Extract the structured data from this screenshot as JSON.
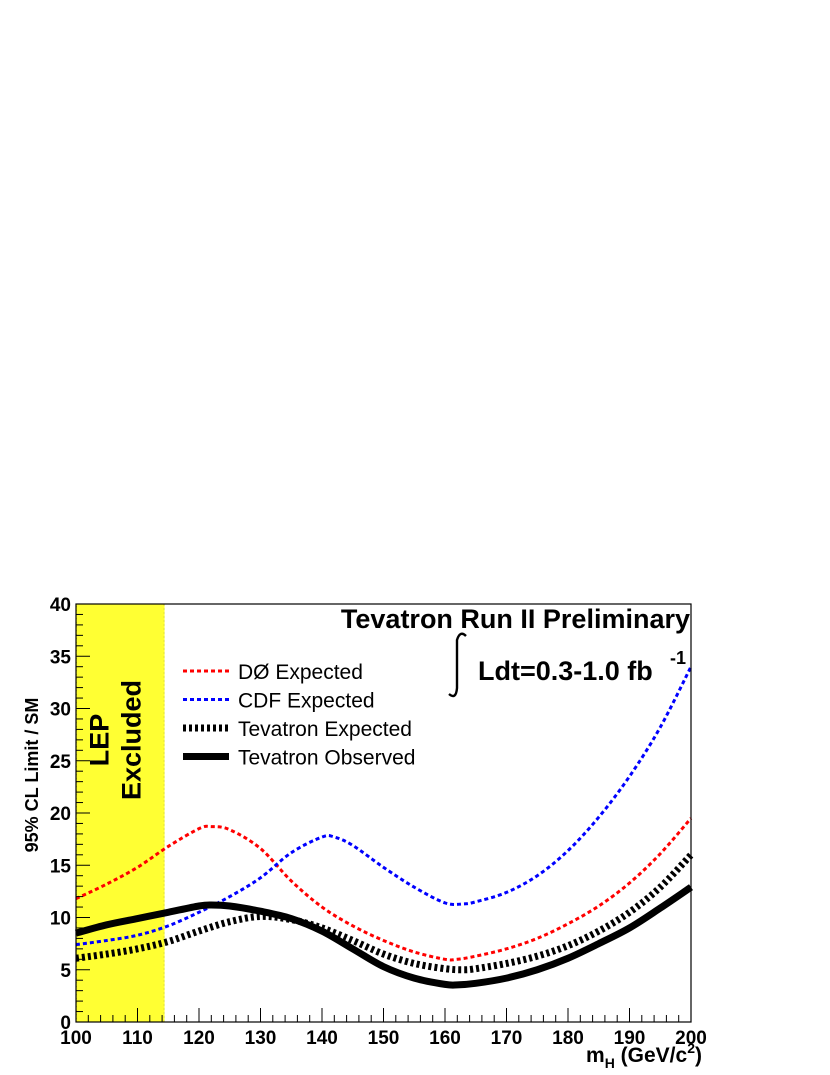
{
  "chart_data": {
    "type": "line",
    "title": "Tevatron Run II Preliminary",
    "luminosity_label": "Ldt=0.3-1.0 fb",
    "luminosity_exponent": "-1",
    "xlabel_main": "m",
    "xlabel_sub": "H",
    "xlabel_rest": " (GeV/c",
    "xlabel_sup": "2",
    "xlabel_end": ")",
    "ylabel": "95% CL Limit / SM",
    "xlim": [
      100,
      200
    ],
    "ylim": [
      0,
      40
    ],
    "x_ticks": [
      "100",
      "110",
      "120",
      "130",
      "140",
      "150",
      "160",
      "170",
      "180",
      "190",
      "200"
    ],
    "y_ticks": [
      "0",
      "5",
      "10",
      "15",
      "20",
      "25",
      "30",
      "35",
      "40"
    ],
    "excluded_region": {
      "x": [
        100,
        114.4
      ],
      "line1": "LEP",
      "line2": "Excluded",
      "color": "#ffff33"
    },
    "series": [
      {
        "name": "DØ Expected",
        "color": "#ff0000",
        "style": "dotted-thin",
        "x": [
          100,
          105,
          110,
          115,
          120,
          122,
          125,
          130,
          135,
          140,
          145,
          150,
          155,
          160,
          162,
          165,
          170,
          175,
          180,
          185,
          190,
          195,
          200
        ],
        "values": [
          11.8,
          13.2,
          14.8,
          16.8,
          18.5,
          18.7,
          18.4,
          16.6,
          13.5,
          11.0,
          9.2,
          7.8,
          6.7,
          6.0,
          6.0,
          6.3,
          7.0,
          8.0,
          9.4,
          11.1,
          13.3,
          16.1,
          19.5
        ]
      },
      {
        "name": "CDF Expected",
        "color": "#0000ff",
        "style": "dotted-thin",
        "x": [
          100,
          105,
          110,
          115,
          120,
          125,
          130,
          135,
          140,
          142,
          145,
          150,
          155,
          160,
          163,
          165,
          170,
          175,
          180,
          185,
          190,
          195,
          200
        ],
        "values": [
          7.4,
          7.8,
          8.3,
          9.2,
          10.5,
          12.0,
          13.8,
          16.2,
          17.7,
          17.7,
          16.9,
          14.8,
          12.9,
          11.4,
          11.3,
          11.5,
          12.4,
          14.0,
          16.4,
          19.6,
          23.5,
          28.2,
          34.0
        ]
      },
      {
        "name": "Tevatron Expected",
        "color": "#000000",
        "style": "dotted-thick",
        "x": [
          100,
          105,
          110,
          115,
          120,
          125,
          130,
          135,
          140,
          145,
          150,
          155,
          160,
          163,
          165,
          170,
          175,
          180,
          185,
          190,
          195,
          200
        ],
        "values": [
          6.1,
          6.5,
          7.0,
          7.7,
          8.7,
          9.6,
          10.1,
          9.8,
          9.0,
          7.8,
          6.5,
          5.6,
          5.1,
          5.0,
          5.1,
          5.6,
          6.3,
          7.3,
          8.7,
          10.5,
          12.9,
          16.0
        ]
      },
      {
        "name": "Tevatron Observed",
        "color": "#000000",
        "style": "solid-thick",
        "x": [
          100,
          105,
          110,
          115,
          120,
          122,
          125,
          130,
          135,
          140,
          145,
          150,
          155,
          160,
          162,
          165,
          170,
          175,
          180,
          185,
          190,
          195,
          200
        ],
        "values": [
          8.5,
          9.3,
          9.9,
          10.5,
          11.1,
          11.2,
          11.1,
          10.6,
          9.9,
          8.7,
          7.0,
          5.3,
          4.2,
          3.6,
          3.55,
          3.7,
          4.2,
          5.0,
          6.1,
          7.5,
          9.0,
          10.9,
          12.9
        ]
      }
    ],
    "legend_position": "top-left"
  }
}
